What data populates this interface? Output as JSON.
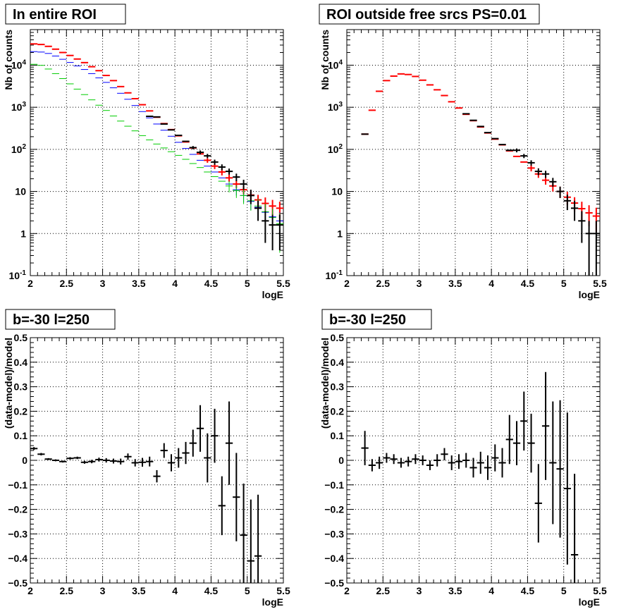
{
  "chart_data": [
    {
      "type": "scatter",
      "title": "In entire ROI",
      "xlabel": "logE",
      "ylabel": "Nb of counts",
      "xlim": [
        2,
        5.5
      ],
      "ylim": [
        0.1,
        70000
      ],
      "yscale": "log",
      "grid": true,
      "xticks": [
        "2",
        "2.5",
        "3",
        "3.5",
        "4",
        "4.5",
        "5",
        "5.5"
      ],
      "yticks": [
        "10^-1",
        "1",
        "10",
        "10^2",
        "10^3",
        "10^4"
      ],
      "x": [
        2.05,
        2.15,
        2.25,
        2.35,
        2.45,
        2.55,
        2.65,
        2.75,
        2.85,
        2.95,
        3.05,
        3.15,
        3.25,
        3.35,
        3.45,
        3.55,
        3.65,
        3.75,
        3.85,
        3.95,
        4.05,
        4.15,
        4.25,
        4.35,
        4.45,
        4.55,
        4.65,
        4.75,
        4.85,
        4.95,
        5.05,
        5.15,
        5.25,
        5.35,
        5.45
      ],
      "series": [
        {
          "color": "#ff0000",
          "values": [
            32000,
            31000,
            28000,
            24000,
            20000,
            17000,
            14000,
            11500,
            9200,
            7400,
            5700,
            4300,
            3100,
            2200,
            1600,
            1150,
            820,
            580,
            410,
            295,
            210,
            150,
            108,
            78,
            55,
            40,
            29,
            21,
            15,
            11,
            8.2,
            6.3,
            5.2,
            4.5,
            4.0
          ],
          "err_lo": [
            0,
            0,
            0,
            0,
            0,
            0,
            0,
            0,
            0,
            0,
            0,
            0,
            0,
            0,
            0,
            0,
            0,
            0,
            0,
            0,
            0,
            0,
            0,
            0,
            7,
            6,
            5,
            4,
            3,
            2.5,
            2.2,
            2,
            2,
            1.8,
            1.7
          ],
          "err_hi": [
            0,
            0,
            0,
            0,
            0,
            0,
            0,
            0,
            0,
            0,
            0,
            0,
            0,
            0,
            0,
            0,
            0,
            0,
            0,
            0,
            0,
            0,
            0,
            0,
            7,
            6,
            5,
            4,
            3,
            2.5,
            2.2,
            2,
            2,
            1.8,
            1.7
          ]
        },
        {
          "color": "#0000ff",
          "values": [
            21000,
            20500,
            19000,
            16500,
            13800,
            11600,
            9600,
            7900,
            6300,
            5000,
            3900,
            2900,
            2150,
            1550,
            1100,
            790,
            560,
            400,
            285,
            205,
            147,
            105,
            76,
            55,
            40,
            29,
            21,
            15,
            11,
            8,
            5.8,
            4.2,
            3.2,
            2.5,
            2.0
          ],
          "err_lo": [
            0,
            0,
            0,
            0,
            0,
            0,
            0,
            0,
            0,
            0,
            0,
            0,
            0,
            0,
            0,
            0,
            0,
            0,
            0,
            0,
            0,
            0,
            0,
            0,
            0,
            0,
            0,
            0,
            3,
            2.5,
            2.2,
            1.8,
            1.5,
            1.3,
            1.2
          ],
          "err_hi": [
            0,
            0,
            0,
            0,
            0,
            0,
            0,
            0,
            0,
            0,
            0,
            0,
            0,
            0,
            0,
            0,
            0,
            0,
            0,
            0,
            0,
            0,
            0,
            0,
            0,
            0,
            0,
            0,
            3,
            2.5,
            2.2,
            1.8,
            1.5,
            1.3,
            1.2
          ]
        },
        {
          "color": "#00cc00",
          "values": [
            10500,
            9900,
            8100,
            6300,
            4800,
            3600,
            2700,
            2000,
            1500,
            1120,
            840,
            620,
            470,
            355,
            275,
            212,
            168,
            134,
            108,
            88,
            72,
            58,
            46,
            37,
            29,
            22.5,
            17.5,
            13.5,
            10.5,
            8,
            6,
            4.5,
            3.3,
            2.4,
            1.7
          ],
          "err_lo": [
            0,
            0,
            0,
            0,
            0,
            0,
            0,
            0,
            0,
            0,
            0,
            0,
            0,
            0,
            0,
            0,
            0,
            0,
            0,
            0,
            0,
            0,
            0,
            0,
            0,
            0,
            0,
            4,
            3.5,
            3,
            2.5,
            2.2,
            1.8,
            1.5,
            1.35
          ],
          "err_hi": [
            0,
            0,
            0,
            0,
            0,
            0,
            0,
            0,
            0,
            0,
            0,
            0,
            0,
            0,
            0,
            0,
            0,
            0,
            0,
            0,
            0,
            0,
            0,
            0,
            0,
            0,
            0,
            4,
            3.5,
            3,
            2.5,
            2.2,
            1.8,
            1.5,
            1.35
          ]
        },
        {
          "color": "#000000",
          "values": [
            null,
            null,
            null,
            null,
            null,
            null,
            null,
            null,
            null,
            null,
            null,
            null,
            null,
            null,
            null,
            null,
            null,
            null,
            null,
            null,
            null,
            null,
            null,
            null,
            null,
            null,
            null,
            null,
            null,
            null,
            null,
            null,
            null,
            null,
            null
          ]
        }
      ],
      "black_points": {
        "x": [
          3.65,
          3.75,
          3.85,
          3.95,
          4.05,
          4.15,
          4.25,
          4.35,
          4.45,
          4.55,
          4.65,
          4.75,
          4.85,
          4.95,
          5.05,
          5.15,
          5.25,
          5.35,
          5.45
        ],
        "values": [
          610,
          590,
          400,
          290,
          215,
          155,
          110,
          85,
          70,
          50,
          38,
          30,
          22,
          15,
          8,
          4,
          2,
          1.6,
          1.6
        ],
        "err_lo": [
          0,
          0,
          0,
          0,
          0,
          0,
          10,
          9,
          8,
          7,
          6,
          5,
          4.5,
          4,
          3,
          2,
          1.4,
          1.2,
          1.2
        ],
        "err_hi": [
          0,
          0,
          0,
          0,
          0,
          0,
          10,
          9,
          8,
          7,
          6,
          5,
          4.5,
          4,
          3,
          2,
          1.4,
          1.2,
          1.2
        ]
      }
    },
    {
      "type": "scatter",
      "title": "ROI outside free srcs PS=0.01",
      "xlabel": "logE",
      "ylabel": "Nb of counts",
      "xlim": [
        2,
        5.5
      ],
      "ylim": [
        0.1,
        70000
      ],
      "yscale": "log",
      "grid": true,
      "xticks": [
        "2",
        "2.5",
        "3",
        "3.5",
        "4",
        "4.5",
        "5",
        "5.5"
      ],
      "yticks": [
        "10^-1",
        "1",
        "10",
        "10^2",
        "10^3",
        "10^4"
      ],
      "x": [
        2.25,
        2.35,
        2.45,
        2.55,
        2.65,
        2.75,
        2.85,
        2.95,
        3.05,
        3.15,
        3.25,
        3.35,
        3.45,
        3.55,
        3.65,
        3.75,
        3.85,
        3.95,
        4.05,
        4.15,
        4.25,
        4.35,
        4.45,
        4.55,
        4.65,
        4.75,
        4.85,
        4.95,
        5.05,
        5.15,
        5.25,
        5.35,
        5.45
      ],
      "series": [
        {
          "color": "#ff0000",
          "values": [
            230,
            850,
            2400,
            4300,
            5500,
            6200,
            6000,
            5400,
            4400,
            3400,
            2600,
            1900,
            1350,
            960,
            680,
            480,
            340,
            245,
            175,
            128,
            92,
            68,
            50,
            36,
            26,
            18.5,
            13.5,
            10,
            7.3,
            5.3,
            3.9,
            3.1,
            2.6
          ],
          "err_lo": [
            0,
            0,
            0,
            0,
            0,
            0,
            0,
            0,
            0,
            0,
            0,
            0,
            0,
            0,
            0,
            0,
            0,
            0,
            0,
            0,
            0,
            0,
            0,
            6,
            5,
            4,
            3.5,
            3,
            2.5,
            2,
            1.8,
            1.6,
            1.5
          ],
          "err_hi": [
            0,
            0,
            0,
            0,
            0,
            0,
            0,
            0,
            0,
            0,
            0,
            0,
            0,
            0,
            0,
            0,
            0,
            0,
            0,
            0,
            0,
            0,
            0,
            6,
            5,
            4,
            3.5,
            3,
            2.5,
            2,
            1.8,
            1.6,
            1.5
          ]
        }
      ],
      "black_points": {
        "x": [
          2.25,
          3.65,
          3.75,
          3.85,
          3.95,
          4.05,
          4.15,
          4.25,
          4.35,
          4.45,
          4.55,
          4.65,
          4.75,
          4.85,
          4.95,
          5.05,
          5.15,
          5.25,
          5.35,
          5.45
        ],
        "values": [
          230,
          700,
          490,
          350,
          250,
          180,
          130,
          95,
          95,
          70,
          48,
          30,
          26,
          17,
          10,
          6,
          4,
          2,
          1,
          1
        ],
        "err_lo": [
          0,
          0,
          0,
          0,
          0,
          0,
          0,
          0,
          10,
          8,
          7,
          5.5,
          5,
          4,
          3,
          2.4,
          2,
          1.4,
          1,
          0.95
        ],
        "err_hi": [
          0,
          0,
          0,
          0,
          0,
          0,
          0,
          0,
          10,
          8,
          7,
          5.5,
          5,
          4,
          3,
          2.4,
          2,
          1.4,
          1,
          1
        ]
      }
    },
    {
      "type": "scatter",
      "title": "b=-30 l=250",
      "xlabel": "logE",
      "ylabel": "(data-model)/model",
      "xlim": [
        2,
        5.5
      ],
      "ylim": [
        -0.5,
        0.5
      ],
      "grid": true,
      "xticks": [
        "2",
        "2.5",
        "3",
        "3.5",
        "4",
        "4.5",
        "5",
        "5.5"
      ],
      "yticks": [
        "-0.5",
        "-0.4",
        "-0.3",
        "-0.2",
        "-0.1",
        "0",
        "0.1",
        "0.2",
        "0.3",
        "0.4",
        "0.5"
      ],
      "x": [
        2.05,
        2.15,
        2.25,
        2.35,
        2.45,
        2.55,
        2.65,
        2.75,
        2.85,
        2.95,
        3.05,
        3.15,
        3.25,
        3.35,
        3.45,
        3.55,
        3.65,
        3.75,
        3.85,
        3.95,
        4.05,
        4.15,
        4.25,
        4.35,
        4.45,
        4.55,
        4.65,
        4.75,
        4.85,
        4.95,
        5.05,
        5.15
      ],
      "values": [
        0.048,
        0.025,
        0.005,
        0.0,
        -0.005,
        0.008,
        0.01,
        -0.008,
        -0.005,
        0.003,
        0.0,
        -0.003,
        -0.005,
        0.015,
        -0.01,
        -0.008,
        -0.005,
        -0.065,
        0.04,
        -0.01,
        0.01,
        0.03,
        0.07,
        0.13,
        0.01,
        0.1,
        -0.185,
        0.07,
        -0.15,
        -0.305,
        -0.41,
        -0.39
      ],
      "err": [
        0.006,
        0.005,
        0.004,
        0.004,
        0.004,
        0.005,
        0.005,
        0.006,
        0.007,
        0.008,
        0.009,
        0.01,
        0.012,
        0.013,
        0.015,
        0.018,
        0.02,
        0.025,
        0.03,
        0.035,
        0.04,
        0.045,
        0.055,
        0.095,
        0.1,
        0.11,
        0.12,
        0.17,
        0.18,
        0.21,
        0.25,
        0.25
      ]
    },
    {
      "type": "scatter",
      "title": "b=-30 l=250",
      "xlabel": "logE",
      "ylabel": "(data-model)/model",
      "xlim": [
        2,
        5.5
      ],
      "ylim": [
        -0.5,
        0.5
      ],
      "grid": true,
      "xticks": [
        "2",
        "2.5",
        "3",
        "3.5",
        "4",
        "4.5",
        "5",
        "5.5"
      ],
      "yticks": [
        "-0.5",
        "-0.4",
        "-0.3",
        "-0.2",
        "-0.1",
        "0",
        "0.1",
        "0.2",
        "0.3",
        "0.4",
        "0.5"
      ],
      "x": [
        2.25,
        2.35,
        2.45,
        2.55,
        2.65,
        2.75,
        2.85,
        2.95,
        3.05,
        3.15,
        3.25,
        3.35,
        3.45,
        3.55,
        3.65,
        3.75,
        3.85,
        3.95,
        4.05,
        4.15,
        4.25,
        4.35,
        4.45,
        4.55,
        4.65,
        4.75,
        4.85,
        4.95,
        5.05,
        5.15
      ],
      "values": [
        0.05,
        -0.02,
        -0.01,
        0.01,
        0.005,
        -0.01,
        -0.005,
        0.005,
        0.0,
        -0.02,
        0.0,
        0.025,
        -0.01,
        -0.005,
        0.0,
        -0.03,
        -0.01,
        -0.03,
        0.01,
        -0.01,
        0.085,
        0.07,
        0.16,
        0.07,
        -0.175,
        0.14,
        -0.01,
        -0.035,
        -0.115,
        -0.385
      ],
      "err": [
        0.07,
        0.025,
        0.025,
        0.02,
        0.02,
        0.02,
        0.02,
        0.02,
        0.02,
        0.02,
        0.025,
        0.025,
        0.03,
        0.03,
        0.03,
        0.04,
        0.045,
        0.05,
        0.055,
        0.06,
        0.1,
        0.09,
        0.12,
        0.12,
        0.16,
        0.22,
        0.25,
        0.28,
        0.31,
        0.33
      ]
    }
  ]
}
